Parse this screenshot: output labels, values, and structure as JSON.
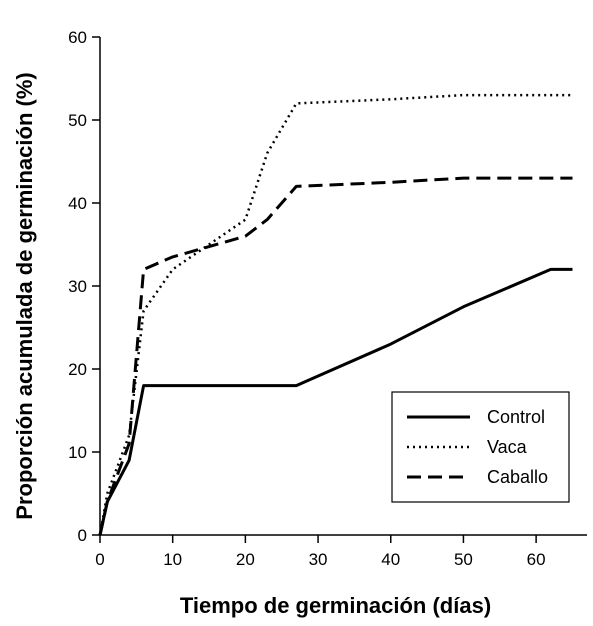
{
  "chart_data": {
    "type": "line",
    "title": "",
    "xlabel": "Tiempo de germinación (días)",
    "ylabel": "Proporción acumulada de germinación (%)",
    "xlim": [
      0,
      67
    ],
    "ylim": [
      0,
      60
    ],
    "xticks": [
      0,
      10,
      20,
      30,
      40,
      50,
      60
    ],
    "yticks": [
      0,
      10,
      20,
      30,
      40,
      50,
      60
    ],
    "grid": false,
    "legend_position": "bottom-right",
    "series": [
      {
        "name": "Control",
        "style": "solid",
        "color": "#000000",
        "x": [
          0,
          1,
          4,
          6,
          10,
          20,
          27,
          40,
          50,
          62,
          65
        ],
        "y": [
          0,
          4,
          9,
          18,
          18,
          18,
          18,
          23,
          27.5,
          32,
          32
        ]
      },
      {
        "name": "Vaca",
        "style": "dotted",
        "color": "#000000",
        "x": [
          0,
          1,
          4,
          6,
          10,
          20,
          23,
          27,
          40,
          50,
          62,
          65
        ],
        "y": [
          0,
          5,
          12,
          27,
          32,
          38,
          46,
          52,
          52.5,
          53,
          53,
          53
        ]
      },
      {
        "name": "Caballo",
        "style": "dashed",
        "color": "#000000",
        "x": [
          0,
          1,
          4,
          6,
          10,
          20,
          23,
          27,
          40,
          50,
          62,
          65
        ],
        "y": [
          0,
          4,
          11,
          32,
          33.5,
          36,
          38,
          42,
          42.5,
          43,
          43,
          43
        ]
      }
    ]
  }
}
